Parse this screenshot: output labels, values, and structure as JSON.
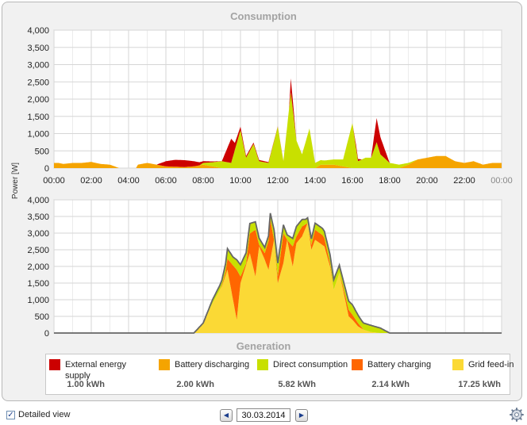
{
  "consumption_title": "Consumption",
  "generation_title": "Generation",
  "y_axis_label": "Power [W]",
  "colors": {
    "external": "#cc0000",
    "battery_discharging": "#f5a400",
    "direct": "#c8e000",
    "battery_charging": "#ff6600",
    "grid_feed": "#fbd935",
    "outline": "#666666"
  },
  "legend": [
    {
      "label": "External energy supply",
      "value": "1.00 kWh",
      "color_key": "external"
    },
    {
      "label": "Battery discharging",
      "value": "2.00 kWh",
      "color_key": "battery_discharging"
    },
    {
      "label": "Direct consumption",
      "value": "5.82 kWh",
      "color_key": "direct"
    },
    {
      "label": "Battery charging",
      "value": "2.14 kWh",
      "color_key": "battery_charging"
    },
    {
      "label": "Grid feed-in",
      "value": "17.25 kWh",
      "color_key": "grid_feed"
    }
  ],
  "bottom_bar": {
    "detailed_view_label": "Detailed view",
    "detailed_view_checked": true,
    "date": "30.03.2014",
    "prev_icon": "arrow-left-icon",
    "next_icon": "arrow-right-icon",
    "settings_icon": "gear-icon"
  },
  "chart_data": [
    {
      "type": "area",
      "title": "Consumption",
      "ylabel": "Power [W]",
      "ylim": [
        0,
        4000
      ],
      "xlim": [
        0,
        24
      ],
      "x_ticks": [
        "00:00",
        "02:00",
        "04:00",
        "06:00",
        "08:00",
        "10:00",
        "12:00",
        "14:00",
        "16:00",
        "18:00",
        "20:00",
        "22:00",
        "00:00"
      ],
      "y_ticks": [
        "0",
        "500",
        "1,000",
        "1,500",
        "2,000",
        "2,500",
        "3,000",
        "3,500",
        "4,000"
      ],
      "grid": true,
      "stacked": true,
      "series": [
        {
          "name": "Battery discharging",
          "color_key": "battery_discharging",
          "points": [
            [
              0.25,
              150
            ],
            [
              0.5,
              120
            ],
            [
              1,
              150
            ],
            [
              1.5,
              150
            ],
            [
              2,
              180
            ],
            [
              2.5,
              120
            ],
            [
              3,
              100
            ],
            [
              3.5,
              0
            ],
            [
              4,
              0
            ],
            [
              4.4,
              0
            ],
            [
              4.5,
              100
            ],
            [
              5,
              150
            ],
            [
              5.5,
              100
            ],
            [
              6,
              50
            ],
            [
              7,
              30
            ],
            [
              7.5,
              50
            ],
            [
              8,
              100
            ],
            [
              9,
              0
            ],
            [
              14,
              0
            ],
            [
              14.3,
              100
            ],
            [
              15,
              100
            ],
            [
              16,
              0
            ],
            [
              18.5,
              0
            ],
            [
              19,
              100
            ],
            [
              19.5,
              250
            ],
            [
              20,
              300
            ],
            [
              20.5,
              350
            ],
            [
              21,
              350
            ],
            [
              21.5,
              200
            ],
            [
              22,
              150
            ],
            [
              22.5,
              200
            ],
            [
              23,
              100
            ],
            [
              23.5,
              150
            ],
            [
              24,
              150
            ]
          ]
        },
        {
          "name": "Direct consumption",
          "color_key": "direct",
          "points": [
            [
              0,
              0
            ],
            [
              7.8,
              0
            ],
            [
              8,
              50
            ],
            [
              8.5,
              120
            ],
            [
              9,
              200
            ],
            [
              9.5,
              150
            ],
            [
              10,
              1100
            ],
            [
              10.3,
              300
            ],
            [
              10.7,
              700
            ],
            [
              11,
              200
            ],
            [
              11.5,
              150
            ],
            [
              12,
              1200
            ],
            [
              12.3,
              200
            ],
            [
              12.7,
              2200
            ],
            [
              13,
              800
            ],
            [
              13.3,
              400
            ],
            [
              13.7,
              1150
            ],
            [
              14,
              150
            ],
            [
              14.5,
              120
            ],
            [
              15,
              150
            ],
            [
              15.5,
              200
            ],
            [
              16,
              1300
            ],
            [
              16.3,
              200
            ],
            [
              16.7,
              300
            ],
            [
              17,
              300
            ],
            [
              17.3,
              750
            ],
            [
              17.5,
              400
            ],
            [
              18,
              150
            ],
            [
              18.5,
              100
            ],
            [
              19,
              50
            ],
            [
              19.5,
              0
            ],
            [
              24,
              0
            ]
          ]
        },
        {
          "name": "External energy supply",
          "color_key": "external",
          "points": [
            [
              0,
              0
            ],
            [
              5.5,
              0
            ],
            [
              6,
              150
            ],
            [
              6.5,
              200
            ],
            [
              7,
              200
            ],
            [
              7.5,
              150
            ],
            [
              8,
              50
            ],
            [
              9,
              0
            ],
            [
              9.5,
              700
            ],
            [
              9.7,
              200
            ],
            [
              10,
              100
            ],
            [
              10.3,
              50
            ],
            [
              12.6,
              0
            ],
            [
              12.7,
              400
            ],
            [
              13,
              0
            ],
            [
              16,
              0
            ],
            [
              16.2,
              100
            ],
            [
              16.5,
              0
            ],
            [
              17,
              0
            ],
            [
              17.3,
              700
            ],
            [
              17.7,
              300
            ],
            [
              18,
              0
            ],
            [
              24,
              0
            ]
          ]
        }
      ]
    },
    {
      "type": "area",
      "title": "Generation",
      "ylabel": "Power [W]",
      "ylim": [
        0,
        4000
      ],
      "xlim": [
        0,
        24
      ],
      "y_ticks": [
        "0",
        "500",
        "1,000",
        "1,500",
        "2,000",
        "2,500",
        "3,000",
        "3,500",
        "4,000"
      ],
      "grid": true,
      "stacked": true,
      "series": [
        {
          "name": "Grid feed-in",
          "color_key": "grid_feed",
          "points": [
            [
              0,
              0
            ],
            [
              7.5,
              0
            ],
            [
              8,
              300
            ],
            [
              8.5,
              900
            ],
            [
              9,
              1400
            ],
            [
              9.3,
              1900
            ],
            [
              9.6,
              1000
            ],
            [
              9.8,
              400
            ],
            [
              10,
              1500
            ],
            [
              10.5,
              2400
            ],
            [
              10.8,
              1700
            ],
            [
              11,
              2600
            ],
            [
              11.3,
              2200
            ],
            [
              11.5,
              1900
            ],
            [
              11.8,
              2800
            ],
            [
              12,
              1500
            ],
            [
              12.3,
              2100
            ],
            [
              12.5,
              2800
            ],
            [
              12.8,
              2000
            ],
            [
              13,
              2700
            ],
            [
              13.3,
              2900
            ],
            [
              13.6,
              3300
            ],
            [
              13.8,
              2500
            ],
            [
              14,
              2800
            ],
            [
              14.5,
              2600
            ],
            [
              14.8,
              2000
            ],
            [
              15,
              1300
            ],
            [
              15.3,
              1800
            ],
            [
              15.5,
              1300
            ],
            [
              15.8,
              500
            ],
            [
              16,
              400
            ],
            [
              16.3,
              200
            ],
            [
              16.6,
              100
            ],
            [
              17,
              30
            ],
            [
              17.5,
              0
            ],
            [
              24,
              0
            ]
          ]
        },
        {
          "name": "Battery charging",
          "color_key": "battery_charging",
          "points": [
            [
              0,
              0
            ],
            [
              8.9,
              0
            ],
            [
              9.2,
              100
            ],
            [
              9.5,
              800
            ],
            [
              9.8,
              1500
            ],
            [
              10,
              200
            ],
            [
              10.3,
              50
            ],
            [
              10.8,
              1400
            ],
            [
              11,
              50
            ],
            [
              11.3,
              200
            ],
            [
              11.6,
              1200
            ],
            [
              11.8,
              0
            ],
            [
              12,
              200
            ],
            [
              12.3,
              900
            ],
            [
              12.5,
              0
            ],
            [
              12.8,
              600
            ],
            [
              13,
              200
            ],
            [
              13.3,
              300
            ],
            [
              13.6,
              0
            ],
            [
              14,
              300
            ],
            [
              14.4,
              300
            ],
            [
              15,
              0
            ],
            [
              15.3,
              0
            ],
            [
              15.5,
              100
            ],
            [
              15.8,
              200
            ],
            [
              16,
              150
            ],
            [
              16.3,
              100
            ],
            [
              16.6,
              0
            ],
            [
              24,
              0
            ]
          ]
        },
        {
          "name": "Direct consumption",
          "color_key": "direct",
          "points": [
            [
              0,
              0
            ],
            [
              8,
              0
            ],
            [
              8.5,
              100
            ],
            [
              9,
              150
            ],
            [
              9.3,
              300
            ],
            [
              9.6,
              250
            ],
            [
              10,
              350
            ],
            [
              10.5,
              300
            ],
            [
              11,
              200
            ],
            [
              11.5,
              150
            ],
            [
              12,
              400
            ],
            [
              12.5,
              150
            ],
            [
              13,
              300
            ],
            [
              13.5,
              150
            ],
            [
              14,
              200
            ],
            [
              14.5,
              200
            ],
            [
              15,
              300
            ],
            [
              15.5,
              200
            ],
            [
              16,
              300
            ],
            [
              16.5,
              200
            ],
            [
              17,
              200
            ],
            [
              17.5,
              150
            ],
            [
              18,
              0
            ],
            [
              24,
              0
            ]
          ]
        }
      ]
    }
  ]
}
